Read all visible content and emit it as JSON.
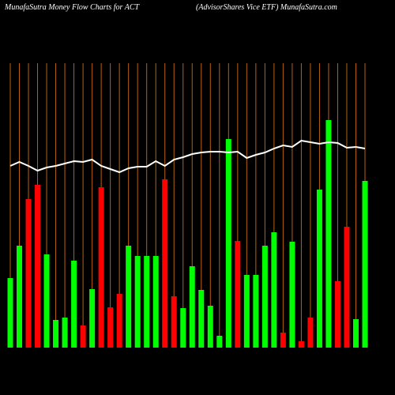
{
  "chart_data": {
    "type": "bar",
    "title": "MunafaSutra  Money Flow  Charts for ACT",
    "subtitle": "(AdvisorShares Vice  ETF) MunafaSutra.com",
    "ylim": [
      0,
      300
    ],
    "values": [
      88,
      129,
      188,
      206,
      118,
      35,
      38,
      110,
      28,
      74,
      203,
      51,
      68,
      129,
      116,
      116,
      116,
      213,
      65,
      50,
      103,
      73,
      53,
      15,
      264,
      135,
      92,
      92,
      129,
      146,
      19,
      134,
      8,
      38,
      200,
      288,
      84,
      153,
      36,
      211
    ],
    "colors": [
      "#00ff00",
      "#00ff00",
      "#ff0000",
      "#ff0000",
      "#00ff00",
      "#00ff00",
      "#00ff00",
      "#00ff00",
      "#ff0000",
      "#00ff00",
      "#ff0000",
      "#ff0000",
      "#ff0000",
      "#00ff00",
      "#00ff00",
      "#00ff00",
      "#00ff00",
      "#ff0000",
      "#ff0000",
      "#00ff00",
      "#00ff00",
      "#00ff00",
      "#00ff00",
      "#00ff00",
      "#00ff00",
      "#ff0000",
      "#00ff00",
      "#00ff00",
      "#00ff00",
      "#00ff00",
      "#ff0000",
      "#00ff00",
      "#ff0000",
      "#ff0000",
      "#00ff00",
      "#00ff00",
      "#ff0000",
      "#ff0000",
      "#00ff00",
      "#00ff00"
    ],
    "line": {
      "color": "#ffffff",
      "values": [
        230,
        235,
        230,
        224,
        228,
        230,
        233,
        236,
        235,
        238,
        230,
        226,
        222,
        227,
        229,
        229,
        236,
        230,
        238,
        241,
        245,
        247,
        248,
        248,
        247,
        248,
        240,
        244,
        247,
        252,
        256,
        254,
        262,
        260,
        258,
        260,
        259,
        253,
        254,
        252
      ]
    },
    "grid_color": "#b8620f"
  }
}
